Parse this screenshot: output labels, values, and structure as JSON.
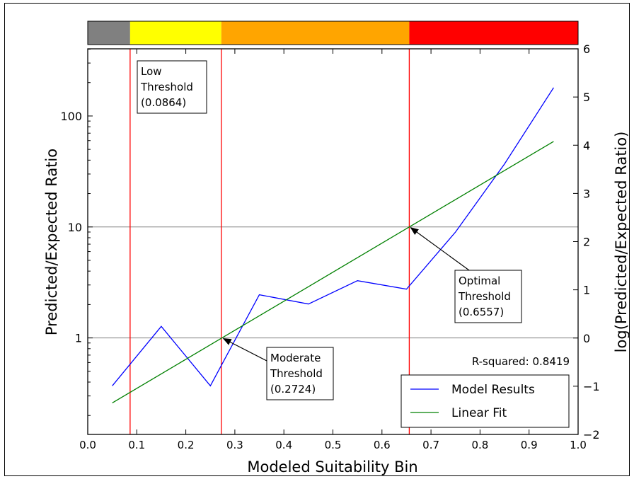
{
  "chart_data": {
    "type": "line",
    "xlabel": "Modeled Suitability Bin",
    "ylabel": "Predicted/Expected Ratio",
    "y2label": "log(Predicted/Expected Ratio)",
    "xlim": [
      0.0,
      1.0
    ],
    "x_ticks": [
      "0.0",
      "0.1",
      "0.2",
      "0.3",
      "0.4",
      "0.5",
      "0.6",
      "0.7",
      "0.8",
      "0.9",
      "1.0"
    ],
    "ylim_log": [
      0.135,
      403
    ],
    "y_scale": "log",
    "y_ticks": [
      "1",
      "10",
      "100"
    ],
    "y2lim": [
      -2,
      6
    ],
    "y2_ticks": [
      "−2",
      "−1",
      "0",
      "1",
      "2",
      "3",
      "4",
      "5",
      "6"
    ],
    "horizontal_gridlines_at": [
      1,
      10
    ],
    "series": [
      {
        "name": "Model Results",
        "color": "#0000ff",
        "x": [
          0.05,
          0.15,
          0.25,
          0.35,
          0.45,
          0.55,
          0.65,
          0.75,
          0.85,
          0.95
        ],
        "y": [
          0.37,
          1.27,
          0.37,
          2.45,
          2.02,
          3.28,
          2.75,
          9.0,
          37.0,
          180.0
        ]
      },
      {
        "name": "Linear Fit",
        "color": "#008000",
        "x": [
          0.05,
          0.95
        ],
        "y": [
          0.26,
          59.0
        ]
      }
    ],
    "legend_position": "bottom-right",
    "annotation": "R-squared: 0.8419",
    "thresholds": [
      {
        "x": 0.0864,
        "lines": [
          "Low",
          "Threshold",
          "(0.0864)"
        ]
      },
      {
        "x": 0.2724,
        "lines": [
          "Moderate",
          "Threshold",
          "(0.2724)"
        ]
      },
      {
        "x": 0.6557,
        "lines": [
          "Optimal",
          "Threshold",
          "(0.6557)"
        ]
      }
    ],
    "threshold_color": "#ff0000",
    "color_bar": [
      {
        "from": 0.0,
        "to": 0.0864,
        "color": "#808080"
      },
      {
        "from": 0.0864,
        "to": 0.2724,
        "color": "#ffff00"
      },
      {
        "from": 0.2724,
        "to": 0.6557,
        "color": "#ffa500"
      },
      {
        "from": 0.6557,
        "to": 1.0,
        "color": "#ff0000"
      }
    ]
  }
}
